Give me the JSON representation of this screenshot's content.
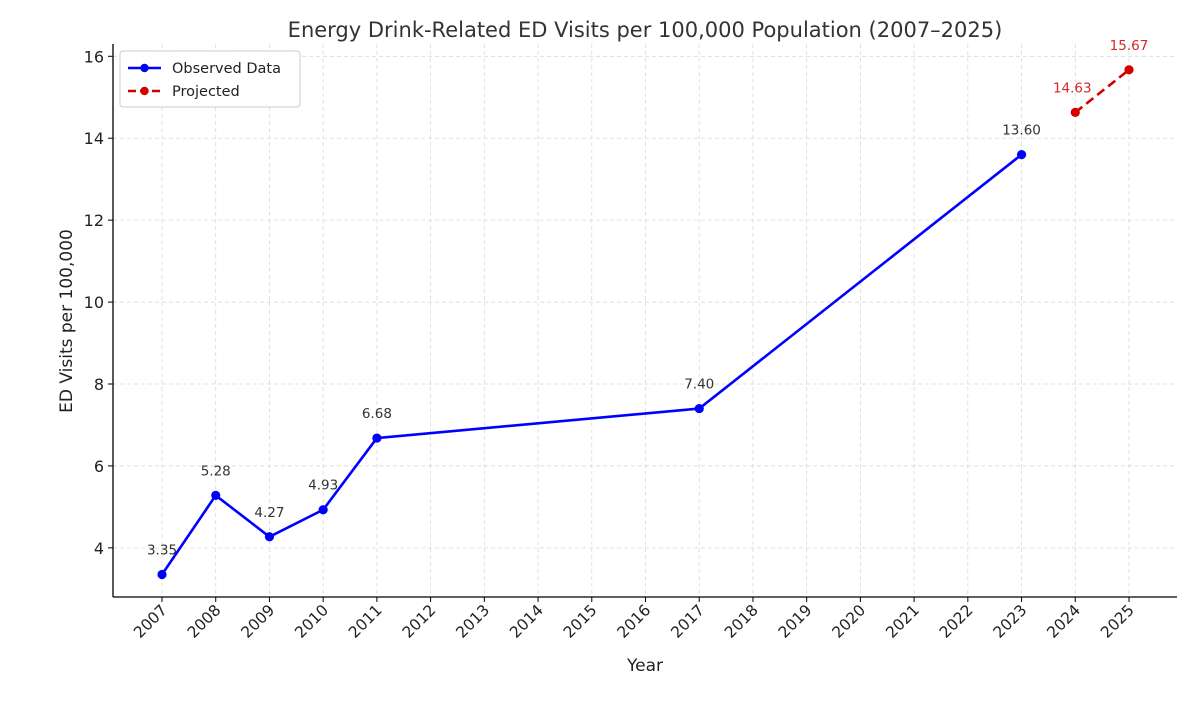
{
  "chart_data": {
    "type": "line",
    "title": "Energy Drink-Related ED Visits per 100,000 Population (2007–2025)",
    "xlabel": "Year",
    "ylabel": "ED Visits per 100,000",
    "categories": [
      "2007",
      "2008",
      "2009",
      "2010",
      "2011",
      "2012",
      "2013",
      "2014",
      "2015",
      "2016",
      "2017",
      "2018",
      "2019",
      "2020",
      "2021",
      "2022",
      "2023",
      "2024",
      "2025"
    ],
    "ylim": [
      2.8,
      16.3
    ],
    "yticks": [
      4,
      6,
      8,
      10,
      12,
      14,
      16
    ],
    "grid": true,
    "legend_position": "top-left",
    "series": [
      {
        "name": "Observed Data",
        "style": "solid",
        "color": "#0000ff",
        "label_color": "#333333",
        "points": [
          {
            "x": "2007",
            "y": 3.35,
            "label": "3.35"
          },
          {
            "x": "2008",
            "y": 5.28,
            "label": "5.28"
          },
          {
            "x": "2009",
            "y": 4.27,
            "label": "4.27"
          },
          {
            "x": "2010",
            "y": 4.93,
            "label": "4.93"
          },
          {
            "x": "2011",
            "y": 6.68,
            "label": "6.68"
          },
          {
            "x": "2017",
            "y": 7.4,
            "label": "7.40"
          },
          {
            "x": "2023",
            "y": 13.6,
            "label": "13.60"
          }
        ]
      },
      {
        "name": "Projected",
        "style": "dashed",
        "color": "#d40000",
        "label_color": "#d62728",
        "points": [
          {
            "x": "2024",
            "y": 14.63,
            "label": "14.63"
          },
          {
            "x": "2025",
            "y": 15.67,
            "label": "15.67"
          }
        ]
      }
    ]
  }
}
